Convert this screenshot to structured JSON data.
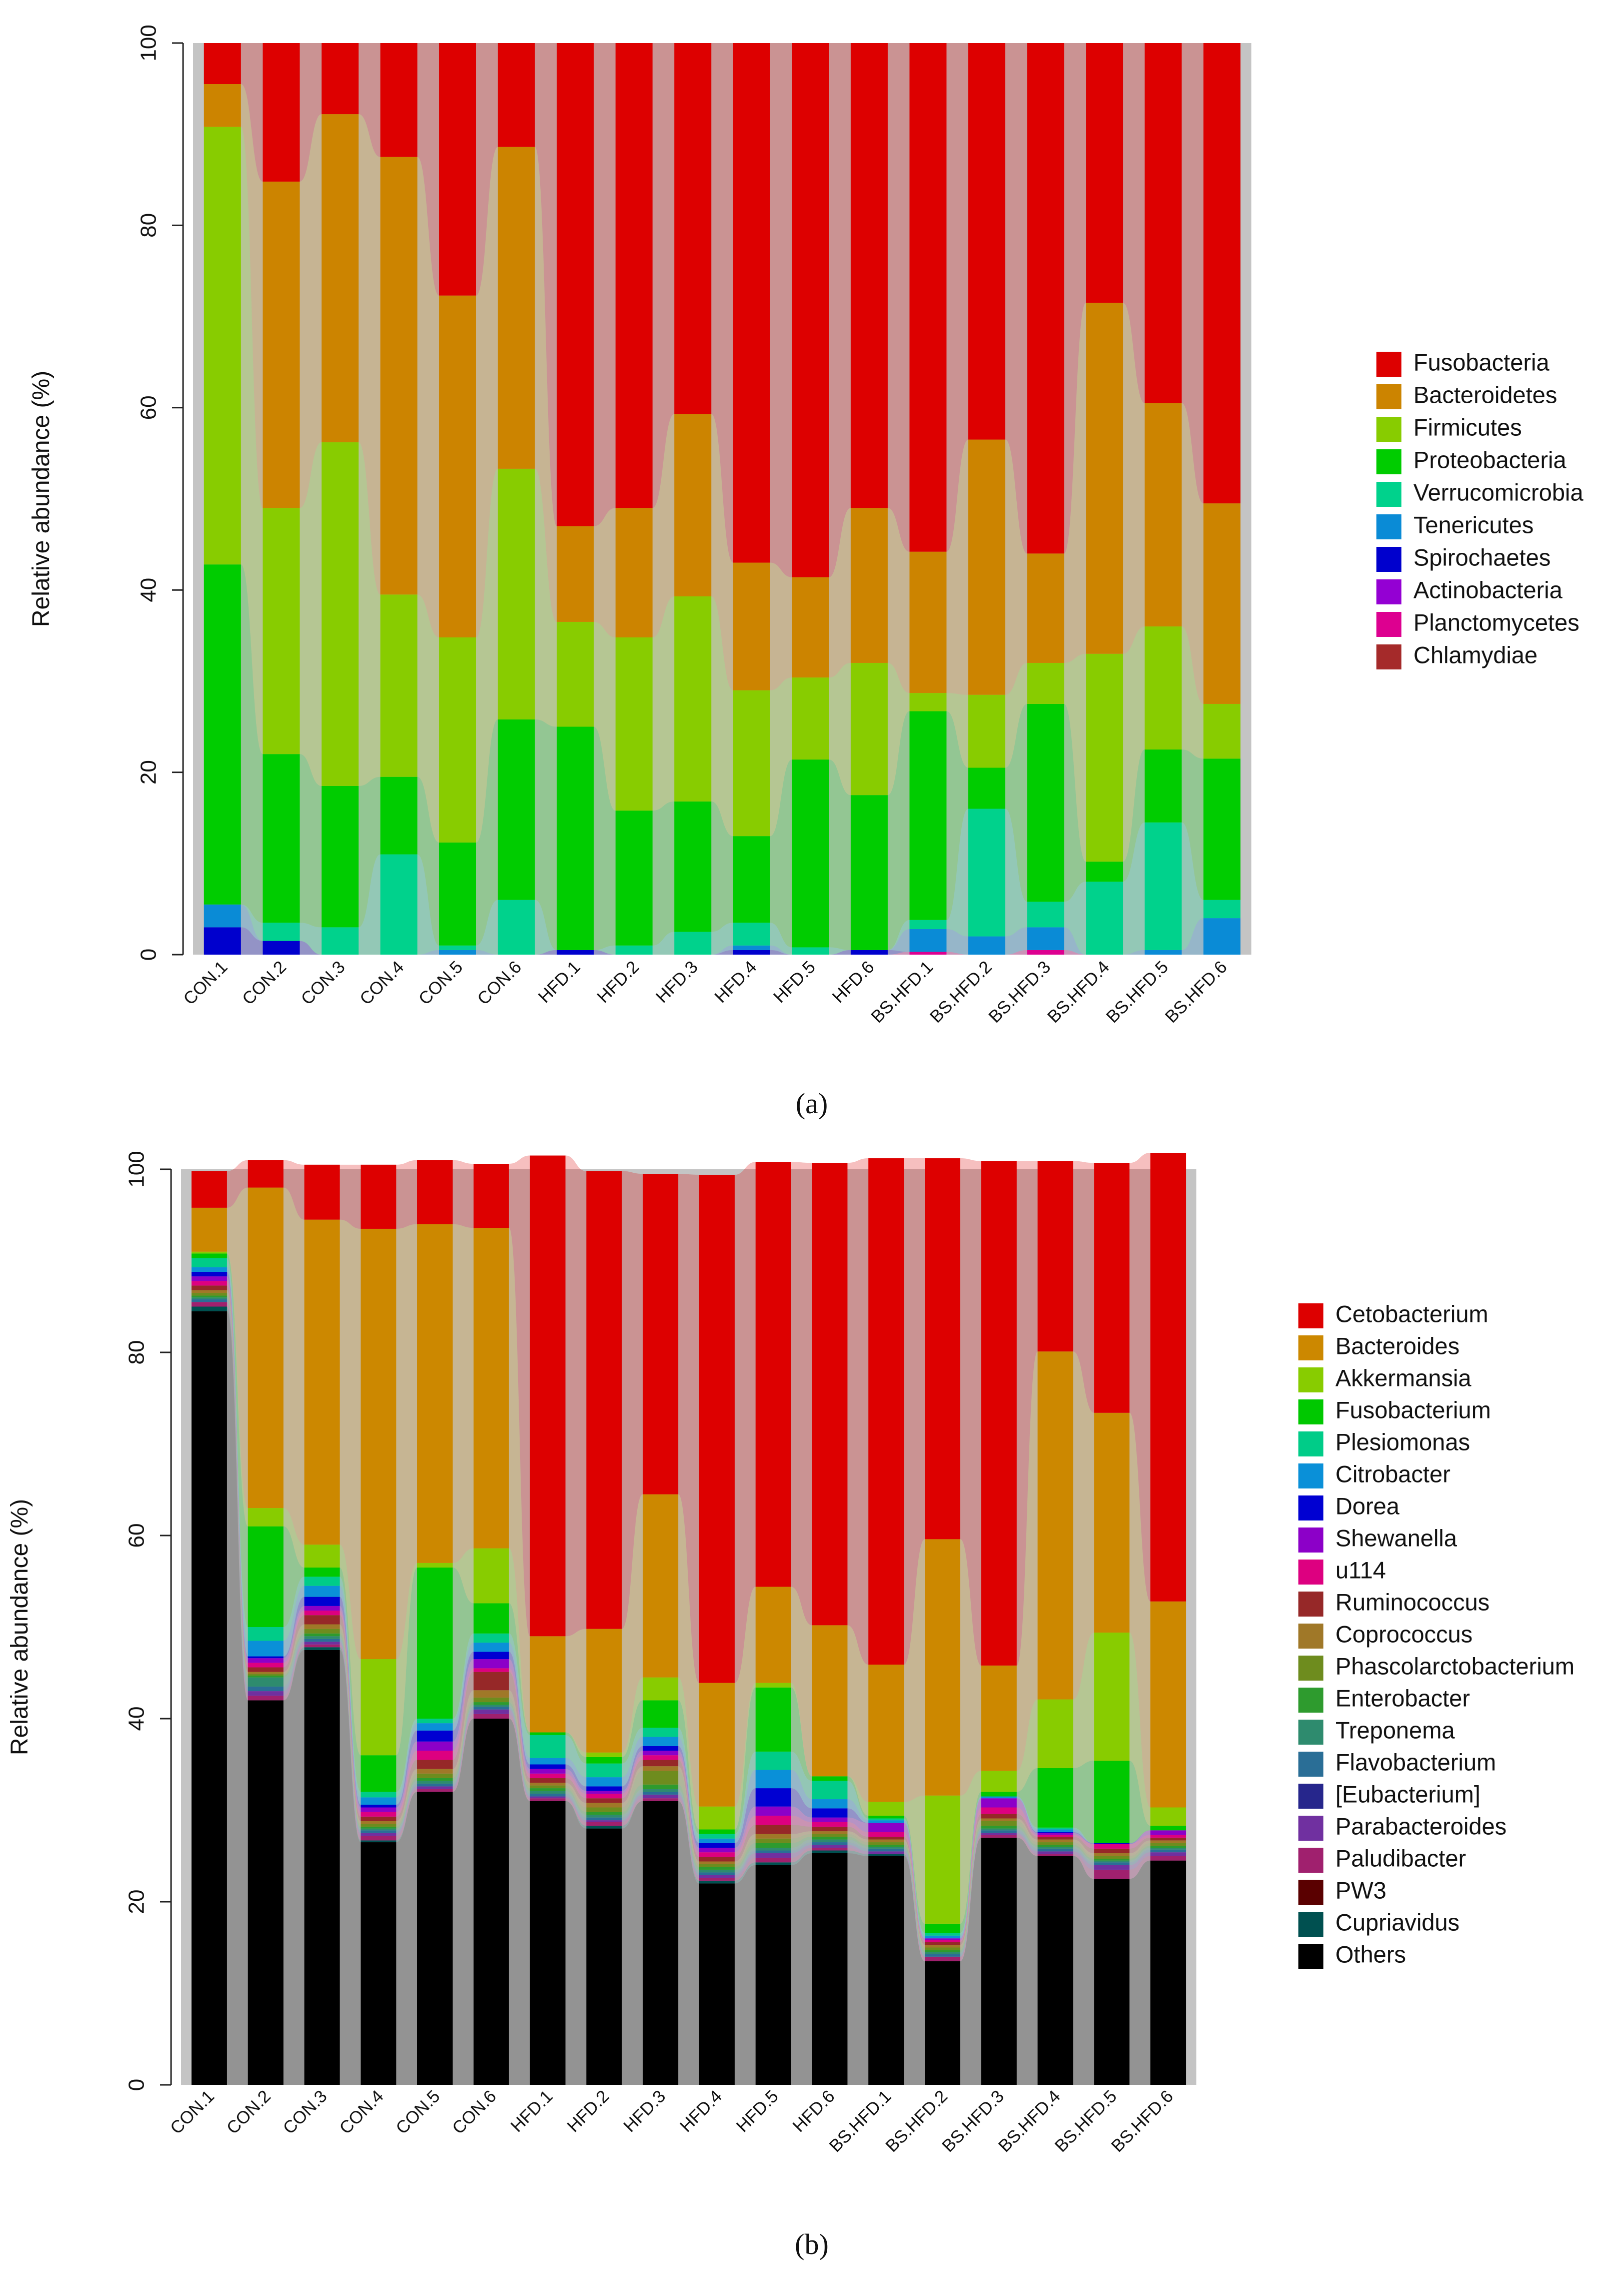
{
  "chart_data": [
    {
      "type": "bar",
      "stacked": true,
      "panel_label": "(a)",
      "ylabel": "Relative abundance (%)",
      "ylim": [
        0,
        100
      ],
      "yticks": [
        0,
        20,
        40,
        60,
        80,
        100
      ],
      "categories": [
        "CON.1",
        "CON.2",
        "CON.3",
        "CON.4",
        "CON.5",
        "CON.6",
        "HFD.1",
        "HFD.2",
        "HFD.3",
        "HFD.4",
        "HFD.5",
        "HFD.6",
        "BS.HFD.1",
        "BS.HFD.2",
        "BS.HFD.3",
        "BS.HFD.4",
        "BS.HFD.5",
        "BS.HFD.6"
      ],
      "legend": [
        "Fusobacteria",
        "Bacteroidetes",
        "Firmicutes",
        "Proteobacteria",
        "Verrucomicrobia",
        "Tenericutes",
        "Spirochaetes",
        "Actinobacteria",
        "Planctomycetes",
        "Chlamydiae"
      ],
      "series": [
        {
          "name": "Chlamydiae",
          "color": "#a52a2a",
          "values": [
            0,
            0,
            0,
            0,
            0,
            0,
            0,
            0,
            0,
            0,
            0,
            0,
            0,
            0,
            0,
            0,
            0,
            0
          ]
        },
        {
          "name": "Planctomycetes",
          "color": "#dd0090",
          "values": [
            0,
            0,
            0,
            0,
            0,
            0,
            0,
            0,
            0,
            0,
            0,
            0,
            0.3,
            0,
            0.5,
            0,
            0,
            0
          ]
        },
        {
          "name": "Actinobacteria",
          "color": "#9400d3",
          "values": [
            0,
            0,
            0,
            0,
            0,
            0,
            0,
            0,
            0,
            0,
            0,
            0,
            0,
            0,
            0,
            0,
            0,
            0
          ]
        },
        {
          "name": "Spirochaetes",
          "color": "#0000cd",
          "values": [
            3,
            1.5,
            0,
            0,
            0,
            0,
            0.5,
            0,
            0,
            0.5,
            0,
            0.5,
            0,
            0,
            0,
            0,
            0,
            0
          ]
        },
        {
          "name": "Tenericutes",
          "color": "#0a8bd6",
          "values": [
            2.5,
            0,
            0,
            0,
            0.5,
            0,
            0,
            0,
            0,
            0.5,
            0,
            0,
            2.5,
            2,
            2.5,
            0,
            0.5,
            4
          ]
        },
        {
          "name": "Verrucomicrobia",
          "color": "#00d28c",
          "values": [
            0,
            2,
            3,
            11,
            0.5,
            6,
            0,
            1,
            2.5,
            2.5,
            0.8,
            0,
            1,
            14,
            2.8,
            8,
            14,
            2
          ]
        },
        {
          "name": "Proteobacteria",
          "color": "#00cc00",
          "values": [
            37.3,
            18.5,
            15.5,
            8.5,
            11.3,
            19.8,
            24.5,
            14.8,
            14.3,
            9.5,
            20.6,
            17,
            22.9,
            4.5,
            21.7,
            2.2,
            8,
            15.5
          ]
        },
        {
          "name": "Firmicutes",
          "color": "#88cc00",
          "values": [
            48,
            27,
            37.7,
            20,
            22.5,
            27.5,
            11.5,
            19,
            22.5,
            16,
            9,
            14.5,
            2,
            8,
            4.5,
            22.8,
            13.5,
            6
          ]
        },
        {
          "name": "Bacteroidetes",
          "color": "#cc8400",
          "values": [
            4.7,
            35.8,
            36,
            48,
            37.5,
            35.3,
            10.5,
            14.2,
            20,
            14,
            11,
            17,
            15.5,
            28,
            12,
            38.5,
            24.5,
            22
          ]
        },
        {
          "name": "Fusobacteria",
          "color": "#dd0000",
          "values": [
            4.5,
            15.2,
            7.8,
            12.5,
            27.7,
            11.4,
            53,
            51,
            40.7,
            57,
            58.6,
            51,
            55.8,
            43.5,
            56,
            28.5,
            39.5,
            50.5
          ]
        }
      ]
    },
    {
      "type": "bar",
      "stacked": true,
      "panel_label": "(b)",
      "ylabel": "Relative abundance (%)",
      "ylim": [
        0,
        100
      ],
      "yticks": [
        0,
        20,
        40,
        60,
        80,
        100
      ],
      "categories": [
        "CON.1",
        "CON.2",
        "CON.3",
        "CON.4",
        "CON.5",
        "CON.6",
        "HFD.1",
        "HFD.2",
        "HFD.3",
        "HFD.4",
        "HFD.5",
        "HFD.6",
        "BS.HFD.1",
        "BS.HFD.2",
        "BS.HFD.3",
        "BS.HFD.4",
        "BS.HFD.5",
        "BS.HFD.6"
      ],
      "legend": [
        "Cetobacterium",
        "Bacteroides",
        "Akkermansia",
        "Fusobacterium",
        "Plesiomonas",
        "Citrobacter",
        "Dorea",
        "Shewanella",
        "u114",
        "Ruminococcus",
        "Coprococcus",
        "Phascolarctobacterium",
        "Enterobacter",
        "Treponema",
        "Flavobacterium",
        "[Eubacterium]",
        "Parabacteroides",
        "Paludibacter",
        "PW3",
        "Cupriavidus",
        "Others"
      ],
      "series": [
        {
          "name": "Others",
          "color": "#000000",
          "values": [
            84.5,
            42,
            47.5,
            26.5,
            32,
            40,
            31,
            28,
            31,
            22,
            24,
            25.3,
            25,
            13.5,
            27,
            25,
            22.5,
            24.5
          ]
        },
        {
          "name": "Cupriavidus",
          "color": "#005050",
          "values": [
            0.5,
            0,
            0.3,
            0.2,
            0,
            0,
            0,
            0.3,
            0,
            0.3,
            0.3,
            0.3,
            0.2,
            0,
            0,
            0,
            0,
            0
          ]
        },
        {
          "name": "PW3",
          "color": "#5a0000",
          "values": [
            0,
            0,
            0,
            0,
            0,
            0,
            0,
            0,
            0,
            0,
            0,
            0,
            0,
            0,
            0,
            0,
            0,
            0
          ]
        },
        {
          "name": "Paludibacter",
          "color": "#a0206e",
          "values": [
            0.5,
            0.5,
            0.3,
            0.5,
            0.3,
            0.5,
            0.3,
            0.4,
            0.3,
            0.3,
            0.5,
            0.3,
            0,
            0.5,
            0.3,
            0.2,
            1,
            0.5
          ]
        },
        {
          "name": "Parabacteroides",
          "color": "#7030a0",
          "values": [
            0,
            0.5,
            0.3,
            0.3,
            0.3,
            0.5,
            0.2,
            0.2,
            0.4,
            0.3,
            0.5,
            0.3,
            0.3,
            0,
            0.2,
            0.3,
            0.5,
            0.4
          ]
        },
        {
          "name": "[Eubacterium]",
          "color": "#26268c",
          "values": [
            0,
            0,
            0,
            0,
            0,
            0,
            0,
            0,
            0,
            0,
            0,
            0,
            0,
            0,
            0,
            0,
            0,
            0
          ]
        },
        {
          "name": "Flavobacterium",
          "color": "#2a6e96",
          "values": [
            0.3,
            0.5,
            0.3,
            0.3,
            0.3,
            0.3,
            0.3,
            0.3,
            0.3,
            0.3,
            0.3,
            0.3,
            0.3,
            0.3,
            0.3,
            0.3,
            0.3,
            0.3
          ]
        },
        {
          "name": "Treponema",
          "color": "#2e8b6e",
          "values": [
            0.2,
            1,
            0.3,
            0.2,
            0.3,
            0.2,
            0.3,
            0.3,
            0.3,
            0.3,
            0.3,
            0.3,
            0.2,
            0.2,
            0.2,
            0.2,
            0.2,
            0.2
          ]
        },
        {
          "name": "Enterobacter",
          "color": "#2e9b2e",
          "values": [
            0.2,
            0.2,
            0.3,
            0.2,
            0.3,
            0.3,
            0.3,
            0.3,
            0.5,
            0.3,
            0.5,
            0.3,
            0.2,
            0.2,
            0.3,
            0.2,
            0.2,
            0.2
          ]
        },
        {
          "name": "Phascolarctobacterium",
          "color": "#6e8c1e",
          "values": [
            0.3,
            0.2,
            0.5,
            0.3,
            0.5,
            0.5,
            0.3,
            0.5,
            1.5,
            0.3,
            0.5,
            0.3,
            0.3,
            0.3,
            0.5,
            0.3,
            0.3,
            0.3
          ]
        },
        {
          "name": "Coprococcus",
          "color": "#a07828",
          "values": [
            0.3,
            0.2,
            0.5,
            0.3,
            0.5,
            0.8,
            0.3,
            0.5,
            0.5,
            0.3,
            0.5,
            0.3,
            0.3,
            0.3,
            0.3,
            0.3,
            0.3,
            0.3
          ]
        },
        {
          "name": "Ruminococcus",
          "color": "#962828",
          "values": [
            0.5,
            0.5,
            1,
            0.5,
            1,
            2,
            0.5,
            0.5,
            0.7,
            0.5,
            1,
            0.5,
            0.3,
            0.3,
            0.5,
            0.3,
            0.5,
            0.3
          ]
        },
        {
          "name": "u114",
          "color": "#dd0080",
          "values": [
            0.5,
            0.5,
            0.5,
            0.5,
            1,
            0.4,
            0.5,
            0.5,
            0.5,
            0.5,
            1,
            0.5,
            0.5,
            0.2,
            0.7,
            0.2,
            0.5,
            0.3
          ]
        },
        {
          "name": "Shewanella",
          "color": "#8c00c8",
          "values": [
            0.5,
            0.5,
            0.5,
            0.5,
            1,
            1,
            0.5,
            0.3,
            0.5,
            0.5,
            1,
            0.5,
            1,
            0.2,
            1,
            0.2,
            0,
            0.5
          ]
        },
        {
          "name": "Dorea",
          "color": "#0000d2",
          "values": [
            0.5,
            0.2,
            1,
            0.3,
            1.2,
            0.8,
            0.5,
            0.5,
            0.5,
            0.5,
            2,
            1,
            0,
            0,
            0,
            0.1,
            0.1,
            0
          ]
        },
        {
          "name": "Citrobacter",
          "color": "#0a90d8",
          "values": [
            0.5,
            1.7,
            1.2,
            0.8,
            0.8,
            1,
            0.7,
            1,
            1,
            0.5,
            2,
            1,
            0.3,
            0.3,
            0.2,
            0.3,
            0,
            0
          ]
        },
        {
          "name": "Plesiomonas",
          "color": "#00cc88",
          "values": [
            1,
            1.5,
            1,
            0.6,
            0.5,
            1,
            2.5,
            1.5,
            1,
            0.5,
            2,
            2,
            0.2,
            0.3,
            0,
            0.2,
            0,
            0
          ]
        },
        {
          "name": "Fusobacterium",
          "color": "#00c800",
          "values": [
            0.5,
            11,
            1,
            4,
            16.5,
            3.3,
            0.3,
            0.7,
            3,
            0.5,
            7,
            0.5,
            0.3,
            1,
            0.5,
            6.5,
            9,
            0.5
          ]
        },
        {
          "name": "Akkermansia",
          "color": "#88cc00",
          "values": [
            0.2,
            2,
            2.5,
            10.5,
            0.5,
            6,
            0,
            0.5,
            2.5,
            2.5,
            0.5,
            0,
            1.5,
            14,
            2.3,
            7.5,
            14,
            2
          ]
        },
        {
          "name": "Bacteroides",
          "color": "#cc8800",
          "values": [
            4.8,
            35,
            35.5,
            47,
            37,
            35,
            10.5,
            13.5,
            20,
            13.5,
            10.5,
            16.5,
            15,
            28,
            11.5,
            38,
            24,
            22.5
          ]
        },
        {
          "name": "Cetobacterium",
          "color": "#dd0000",
          "values": [
            4,
            3,
            6,
            7,
            7,
            7,
            52.5,
            50,
            35,
            55.5,
            46.4,
            50.5,
            55.3,
            41.6,
            55.1,
            20.8,
            27.3,
            49
          ]
        }
      ]
    }
  ]
}
